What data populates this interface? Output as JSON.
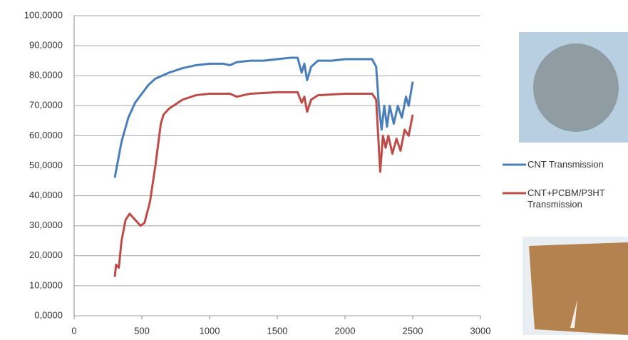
{
  "chart_data": {
    "type": "line",
    "xlim": [
      0,
      3000
    ],
    "xticks": [
      0,
      500,
      1000,
      1500,
      2000,
      2500,
      3000
    ],
    "ylim": [
      0,
      100
    ],
    "yticks": [
      {
        "value": 0,
        "label": "0,0000"
      },
      {
        "value": 10,
        "label": "10,0000"
      },
      {
        "value": 20,
        "label": "20,0000"
      },
      {
        "value": 30,
        "label": "30,0000"
      },
      {
        "value": 40,
        "label": "40,0000"
      },
      {
        "value": 50,
        "label": "50,0000"
      },
      {
        "value": 60,
        "label": "60,0000"
      },
      {
        "value": 70,
        "label": "70,0000"
      },
      {
        "value": 80,
        "label": "80,0000"
      },
      {
        "value": 90,
        "label": "90,0000"
      },
      {
        "value": 100,
        "label": "100,0000"
      }
    ],
    "grid": true,
    "legend": "right",
    "series": [
      {
        "name": "CNT Transmission",
        "color": "#4a7ebb",
        "x": [
          300,
          350,
          400,
          450,
          500,
          550,
          600,
          700,
          800,
          900,
          1000,
          1100,
          1150,
          1200,
          1300,
          1400,
          1500,
          1600,
          1650,
          1680,
          1700,
          1720,
          1750,
          1800,
          1900,
          2000,
          2100,
          2200,
          2230,
          2250,
          2270,
          2290,
          2310,
          2330,
          2360,
          2390,
          2420,
          2450,
          2470,
          2500
        ],
        "values": [
          46,
          58,
          66,
          71,
          74,
          77,
          79,
          81,
          82.5,
          83.5,
          84,
          84,
          83.5,
          84.5,
          85,
          85,
          85.5,
          86,
          86,
          81,
          84,
          78.5,
          83,
          85,
          85,
          85.5,
          85.5,
          85.5,
          83,
          70,
          62,
          70,
          63,
          70,
          64,
          70,
          66,
          73,
          70,
          78
        ]
      },
      {
        "name": "CNT+PCBM/P3HT Transmission",
        "color": "#be4b48",
        "x": [
          300,
          310,
          330,
          350,
          380,
          410,
          450,
          490,
          520,
          560,
          600,
          640,
          660,
          700,
          800,
          900,
          1000,
          1150,
          1200,
          1300,
          1500,
          1650,
          1680,
          1700,
          1720,
          1750,
          1800,
          2000,
          2200,
          2230,
          2260,
          2280,
          2300,
          2320,
          2350,
          2380,
          2410,
          2440,
          2470,
          2500
        ],
        "values": [
          13,
          17,
          16,
          25,
          32,
          34,
          32,
          30,
          31,
          38,
          50,
          64,
          67,
          69,
          72,
          73.5,
          74,
          74,
          73,
          74,
          74.5,
          74.5,
          71,
          73,
          68,
          72,
          73.5,
          74,
          74,
          72,
          48,
          60,
          56,
          60,
          54,
          59,
          55,
          62,
          60,
          67
        ]
      }
    ]
  }
}
